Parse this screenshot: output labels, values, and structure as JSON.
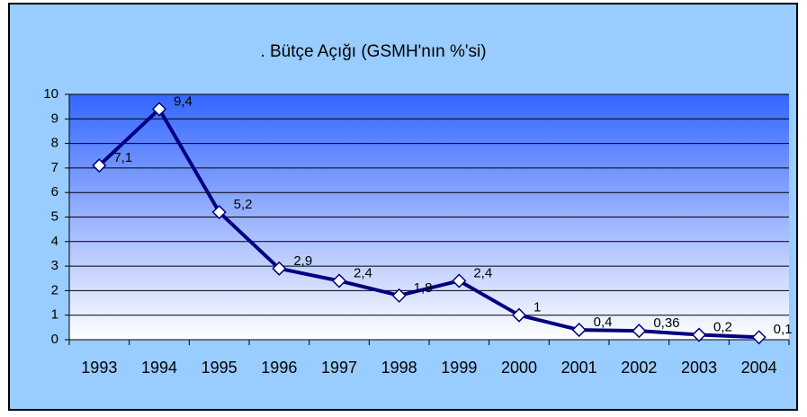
{
  "chart_data": {
    "type": "line",
    "title": ". Bütçe Açığı (GSMH'nın %'si)",
    "categories": [
      "1993",
      "1994",
      "1995",
      "1996",
      "1997",
      "1998",
      "1999",
      "2000",
      "2001",
      "2002",
      "2003",
      "2004"
    ],
    "series": [
      {
        "name": "Bütçe Açığı",
        "color": "#000080",
        "values": [
          7.1,
          9.4,
          5.2,
          2.9,
          2.4,
          1.8,
          2.4,
          1,
          0.4,
          0.36,
          0.2,
          0.1
        ],
        "value_labels": [
          "7,1",
          "9,4",
          "5,2",
          "2,9",
          "2,4",
          "1,8",
          "2,4",
          "1",
          "0,4",
          "0,36",
          "0,2",
          "0,1"
        ]
      }
    ],
    "ylim": [
      0,
      10
    ],
    "yticks": [
      0,
      1,
      2,
      3,
      4,
      5,
      6,
      7,
      8,
      9,
      10
    ],
    "grid": true
  }
}
